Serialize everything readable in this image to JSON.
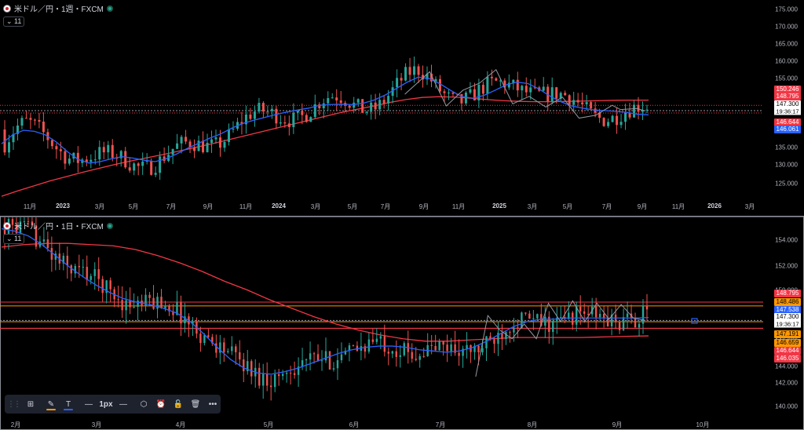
{
  "colors": {
    "up": "#26a69a",
    "down": "#ef5350",
    "ma_fast": "#2962ff",
    "ma_slow": "#f23645",
    "zigzag": "#9598a1",
    "hline_orange": "#ff9800",
    "hline_red": "#f23645"
  },
  "top_pane": {
    "legend": {
      "symbol": "米ドル／円・1週・FXCM",
      "collapse_count": "11"
    },
    "price_axis": [
      "175.000",
      "170.000",
      "165.000",
      "160.000",
      "155.000",
      "150.000",
      "145.000",
      "140.000",
      "135.000",
      "130.000",
      "125.000"
    ],
    "time_axis": [
      {
        "label": "11月",
        "bold": false
      },
      {
        "label": "2023",
        "bold": true
      },
      {
        "label": "3月",
        "bold": false
      },
      {
        "label": "5月",
        "bold": false
      },
      {
        "label": "7月",
        "bold": false
      },
      {
        "label": "9月",
        "bold": false
      },
      {
        "label": "11月",
        "bold": false
      },
      {
        "label": "2024",
        "bold": true
      },
      {
        "label": "3月",
        "bold": false
      },
      {
        "label": "5月",
        "bold": false
      },
      {
        "label": "7月",
        "bold": false
      },
      {
        "label": "9月",
        "bold": false
      },
      {
        "label": "11月",
        "bold": false
      },
      {
        "label": "2025",
        "bold": true
      },
      {
        "label": "3月",
        "bold": false
      },
      {
        "label": "5月",
        "bold": false
      },
      {
        "label": "7月",
        "bold": false
      },
      {
        "label": "9月",
        "bold": false
      },
      {
        "label": "11月",
        "bold": false
      },
      {
        "label": "2026",
        "bold": true
      },
      {
        "label": "3月",
        "bold": false
      }
    ],
    "price_labels": [
      {
        "text": "150.246",
        "color": "#f23645",
        "dark": false
      },
      {
        "text": "148.795",
        "color": "#f23645",
        "dark": false
      },
      {
        "text": "147.300",
        "color": "#ffffff",
        "dark": true
      },
      {
        "text": "146.644",
        "color": "#f23645",
        "dark": false
      },
      {
        "text": "146.061",
        "color": "#2962ff",
        "dark": false
      }
    ],
    "countdown": "19:36:17"
  },
  "bottom_pane": {
    "legend": {
      "symbol": "米ドル／円・1日・FXCM",
      "collapse_count": "11"
    },
    "price_axis": [
      "154.000",
      "152.000",
      "150.000",
      "148.000",
      "146.000",
      "144.000",
      "142.000",
      "140.000"
    ],
    "time_axis": [
      {
        "label": "2月",
        "bold": false
      },
      {
        "label": "3月",
        "bold": false
      },
      {
        "label": "4月",
        "bold": false
      },
      {
        "label": "5月",
        "bold": false
      },
      {
        "label": "6月",
        "bold": false
      },
      {
        "label": "7月",
        "bold": false
      },
      {
        "label": "8月",
        "bold": false
      },
      {
        "label": "9月",
        "bold": false
      },
      {
        "label": "10月",
        "bold": false
      }
    ],
    "price_labels": [
      {
        "text": "148.795",
        "color": "#f23645",
        "dark": false
      },
      {
        "text": "148.486",
        "color": "#ff9800",
        "dark": true
      },
      {
        "text": "147.538",
        "color": "#2962ff",
        "dark": false
      },
      {
        "text": "147.300",
        "color": "#ffffff",
        "dark": true
      },
      {
        "text": "147.191",
        "color": "#ff9800",
        "dark": true
      },
      {
        "text": "146.659",
        "color": "#ff9800",
        "dark": true
      },
      {
        "text": "146.644",
        "color": "#f23645",
        "dark": false
      },
      {
        "text": "146.035",
        "color": "#f23645",
        "dark": false
      }
    ],
    "countdown": "19:36:17"
  },
  "chart_data": [
    {
      "type": "candlestick",
      "title": "米ドル／円・1週・FXCM",
      "timeframe": "1週",
      "ylim": [
        122,
        177
      ],
      "horizontal_lines": [
        148.795,
        147.3,
        146.644
      ],
      "last_price": 147.3,
      "moving_averages": {
        "fast": 146.061,
        "slow": 150.246
      },
      "ma_fast": [
        138,
        140.5,
        141.8,
        141.5,
        140.5,
        138.5,
        135.8,
        133.6,
        132.6,
        133,
        133.8,
        134.4,
        134,
        133.4,
        133,
        133.8,
        135.2,
        136.8,
        138.2,
        139.6,
        140.8,
        142.4,
        143.7,
        144.6,
        145.4,
        146.2,
        146.9,
        147.5,
        148,
        148.8,
        149,
        149.1,
        149,
        149.4,
        150.3,
        151.7,
        153.5,
        155.3,
        156.7,
        156.3,
        154.8,
        152.9,
        151.2,
        150.8,
        151.6,
        153,
        154.5,
        155.3,
        154.9,
        153.4,
        151.4,
        149.8,
        148.6,
        148,
        147.5,
        147.3,
        147.1,
        146.8,
        146.3,
        146.1
      ],
      "ma_slow": [
        123.3,
        124.8,
        126.2,
        127.6,
        128.8,
        130,
        131.1,
        132.2,
        133.2,
        134.1,
        135,
        136,
        137,
        138,
        139.1,
        140.2,
        141.3,
        142.4,
        143.5,
        144.6,
        145.7,
        146.8,
        147.7,
        148.6,
        149.6,
        150.4,
        151,
        151.2,
        151.1,
        150.8,
        150.4,
        150.1,
        149.9,
        149.8,
        149.8,
        149.9,
        150,
        150.1,
        150.2,
        150.25,
        150.25
      ],
      "zigzag": [
        [
          1,
          151.9
        ],
        [
          4,
          158.2
        ],
        [
          6,
          148.6
        ],
        [
          8,
          153
        ],
        [
          10,
          155
        ],
        [
          12,
          158.8
        ],
        [
          14,
          149.2
        ],
        [
          16,
          151.3
        ],
        [
          18,
          148.3
        ],
        [
          20,
          151.1
        ],
        [
          22,
          145.2
        ],
        [
          24,
          146
        ],
        [
          26,
          148.8
        ],
        [
          27,
          147.6
        ],
        [
          29,
          147.9
        ],
        [
          30,
          147.2
        ]
      ]
    },
    {
      "type": "candlestick",
      "title": "米ドル／円・1日・FXCM",
      "timeframe": "1日",
      "ylim": [
        139.3,
        155.6
      ],
      "horizontal_lines": [
        148.795,
        148.486,
        147.3,
        147.191,
        146.659,
        146.644
      ],
      "last_price": 147.3,
      "moving_averages": {
        "fast": 147.538,
        "slow": 146.035
      },
      "ma_fast": [
        154.8,
        154.6,
        154.2,
        153.5,
        152.6,
        151.7,
        150.9,
        150.2,
        149.6,
        149.1,
        148.8,
        148.6,
        148.3,
        147.9,
        147.2,
        146.2,
        145.1,
        144.1,
        143.4,
        143,
        142.9,
        143.1,
        143.4,
        143.8,
        144.2,
        144.6,
        144.9,
        145.1,
        145.2,
        145.2,
        145.1,
        144.9,
        144.8,
        144.7,
        144.8,
        145.1,
        145.6,
        146.2,
        146.8,
        147.2,
        147.4,
        147.4,
        147.5,
        147.5,
        147.5,
        147.5,
        147.5,
        147.5,
        147.538
      ],
      "ma_slow": [
        153.3,
        153.5,
        153.6,
        153.6,
        153.5,
        153.4,
        153.1,
        152.6,
        152,
        151.3,
        150.5,
        149.8,
        149,
        148.3,
        147.6,
        147,
        146.5,
        146.1,
        145.8,
        145.6,
        145.6,
        145.7,
        145.8,
        145.9,
        145.9,
        145.9,
        145.9,
        145.95,
        146,
        146.035
      ],
      "zigzag": [
        [
          2,
          142.7
        ],
        [
          3,
          147.7
        ],
        [
          4,
          146.5
        ],
        [
          5,
          145.8
        ],
        [
          6,
          147
        ],
        [
          7,
          145.8
        ],
        [
          8,
          148.7
        ],
        [
          9,
          147.2
        ],
        [
          10,
          148.9
        ],
        [
          11,
          147.2
        ],
        [
          12,
          148.7
        ],
        [
          13,
          147.4
        ],
        [
          14,
          148.6
        ],
        [
          15,
          147.5
        ],
        [
          16,
          147.3
        ]
      ]
    }
  ],
  "toolbar": {
    "items": [
      {
        "name": "drag-grip-icon",
        "glyph": "⋮⋮",
        "underline": ""
      },
      {
        "name": "layout-icon",
        "glyph": "⊞",
        "underline": ""
      },
      {
        "name": "pencil-icon",
        "glyph": "✎",
        "underline": "#ff9800"
      },
      {
        "name": "text-icon",
        "glyph": "T",
        "underline": "#2962ff"
      },
      {
        "name": "line-style-icon",
        "glyph": "—",
        "underline": ""
      },
      {
        "name": "line-width-label",
        "glyph": "1px",
        "underline": ""
      },
      {
        "name": "line-dash-icon",
        "glyph": "—",
        "underline": ""
      },
      {
        "name": "settings-icon",
        "glyph": "⬡",
        "underline": ""
      },
      {
        "name": "alert-icon",
        "glyph": "⏰",
        "underline": ""
      },
      {
        "name": "lock-icon",
        "glyph": "🔓",
        "underline": ""
      },
      {
        "name": "trash-icon",
        "glyph": "🗑",
        "underline": ""
      },
      {
        "name": "more-icon",
        "glyph": "•••",
        "underline": ""
      }
    ]
  }
}
